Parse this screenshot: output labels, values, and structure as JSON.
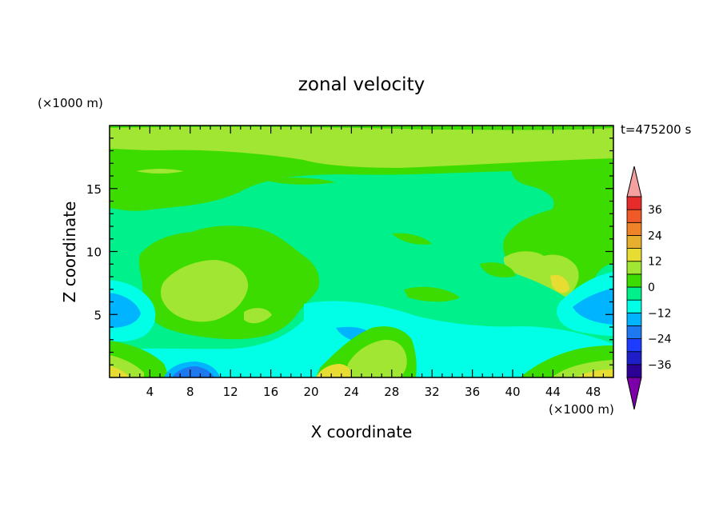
{
  "chart_data": {
    "type": "heatmap",
    "title": "zonal velocity",
    "xlabel": "X coordinate",
    "ylabel": "Z coordinate",
    "x_unit": "(×1000 m)",
    "y_unit": "(×1000 m)",
    "time_label": "t=475200 s",
    "xlim": [
      0,
      50
    ],
    "ylim": [
      0,
      20
    ],
    "x_ticks": [
      4,
      8,
      12,
      16,
      20,
      24,
      28,
      32,
      36,
      40,
      44,
      48
    ],
    "y_ticks": [
      5,
      10,
      15
    ],
    "colorbar": {
      "levels": [
        -42,
        -36,
        -30,
        -24,
        -18,
        -12,
        -6,
        0,
        6,
        12,
        18,
        24,
        30,
        36,
        42
      ],
      "tick_labels": [
        36,
        24,
        12,
        0,
        -12,
        -24,
        -36
      ],
      "colors": [
        "#7b00a8",
        "#2d0096",
        "#1e1ec8",
        "#1e3cff",
        "#1e78f0",
        "#00b4ff",
        "#00ffe6",
        "#00f08c",
        "#3cdc00",
        "#a0e632",
        "#e6dc32",
        "#e6af2d",
        "#f08228",
        "#f05a28",
        "#e62b2b",
        "#f5a0a0"
      ],
      "extend": "both"
    },
    "regions": [
      {
        "level": 0,
        "description": "background near-zero field"
      },
      {
        "level": 6,
        "x_range": [
          0,
          50
        ],
        "z_range": [
          16.5,
          20
        ]
      },
      {
        "level": 6,
        "x_range": [
          5,
          15
        ],
        "z_range": [
          4,
          9
        ]
      },
      {
        "level": 6,
        "x_range": [
          39,
          47
        ],
        "z_range": [
          6.5,
          9.5
        ]
      },
      {
        "level": -12,
        "x_range": [
          0,
          3.5
        ],
        "z_range": [
          4,
          7
        ]
      },
      {
        "level": -12,
        "x_range": [
          45,
          50
        ],
        "z_range": [
          4,
          7
        ]
      },
      {
        "level": -18,
        "x_range": [
          6.5,
          11
        ],
        "z_range": [
          0,
          0.8
        ]
      },
      {
        "level": 12,
        "x_range": [
          0,
          4
        ],
        "z_range": [
          0,
          1
        ]
      },
      {
        "level": 12,
        "x_range": [
          21,
          25
        ],
        "z_range": [
          0,
          1
        ]
      },
      {
        "level": 12,
        "x_range": [
          45,
          50
        ],
        "z_range": [
          0,
          1
        ]
      }
    ]
  }
}
